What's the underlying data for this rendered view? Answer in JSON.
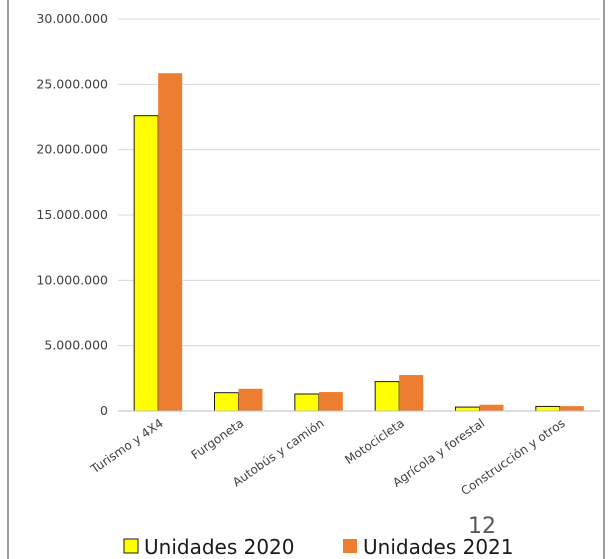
{
  "page_number": "12",
  "colors": {
    "series_2020": "#ffff00",
    "series_2021": "#ed7d31",
    "gridline": "#d9d9d9",
    "axis_text": "#404040",
    "frame": "#7f7f7f"
  },
  "chart_data": {
    "type": "bar",
    "title": "",
    "xlabel": "",
    "ylabel": "",
    "categories": [
      "Turismo y 4X4",
      "Furgoneta",
      "Autobús y camión",
      "Motocicleta",
      "Agrícola y forestal",
      "Construcción y otros"
    ],
    "series": [
      {
        "name": "Unidades 2020",
        "values": [
          22600000,
          1400000,
          1300000,
          2250000,
          300000,
          350000
        ]
      },
      {
        "name": "Unidades 2021",
        "values": [
          25850000,
          1700000,
          1450000,
          2750000,
          480000,
          370000
        ]
      }
    ],
    "ylim": [
      0,
      30000000
    ],
    "yticks": [
      0,
      5000000,
      10000000,
      15000000,
      20000000,
      25000000,
      30000000
    ],
    "ytick_labels": [
      "0",
      "5.000.000",
      "10.000.000",
      "15.000.000",
      "20.000.000",
      "25.000.000",
      "30.000.000"
    ],
    "grid": true,
    "legend": "bottom"
  }
}
